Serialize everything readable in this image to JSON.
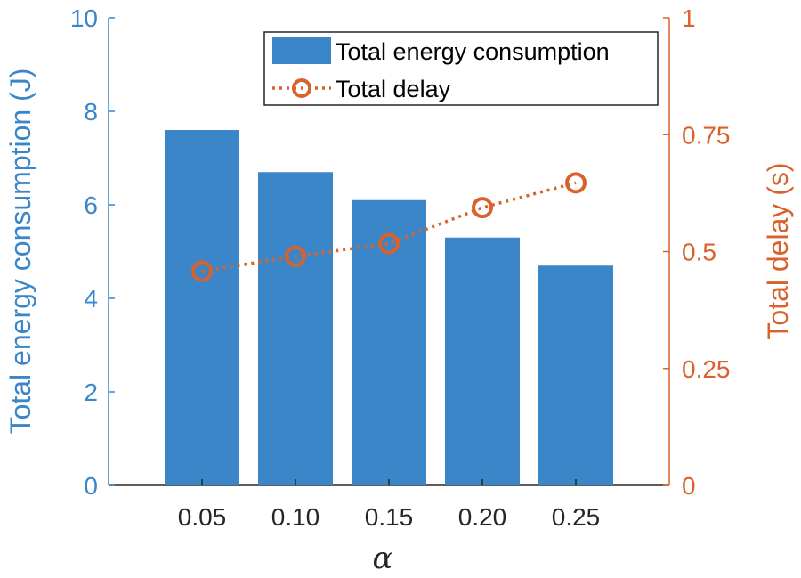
{
  "chart_data": {
    "type": "bar+line",
    "categories": [
      "0.05",
      "0.10",
      "0.15",
      "0.20",
      "0.25"
    ],
    "series": [
      {
        "name": "Total energy consumption",
        "type": "bar",
        "axis": "left",
        "values": [
          7.6,
          6.7,
          6.1,
          5.3,
          4.7
        ],
        "color": "#3a86c8"
      },
      {
        "name": "Total delay",
        "type": "line",
        "axis": "right",
        "marker": "circle",
        "line_style": "dotted",
        "values": [
          0.458,
          0.49,
          0.517,
          0.594,
          0.647
        ],
        "color": "#d9622b"
      }
    ],
    "xlabel": "α",
    "ylabel_left": "Total energy consumption (J)",
    "ylabel_right": "Total delay (s)",
    "ylim_left": [
      0,
      10
    ],
    "ylim_right": [
      0,
      1
    ],
    "yticks_left": [
      "0",
      "2",
      "4",
      "6",
      "8",
      "10"
    ],
    "yticks_right": [
      "0",
      "0.25",
      "0.5",
      "0.75",
      "1"
    ],
    "ytick_values_left": [
      0,
      2,
      4,
      6,
      8,
      10
    ],
    "ytick_values_right": [
      0,
      0.25,
      0.5,
      0.75,
      1
    ],
    "grid": false,
    "legend_position": "top-right"
  }
}
